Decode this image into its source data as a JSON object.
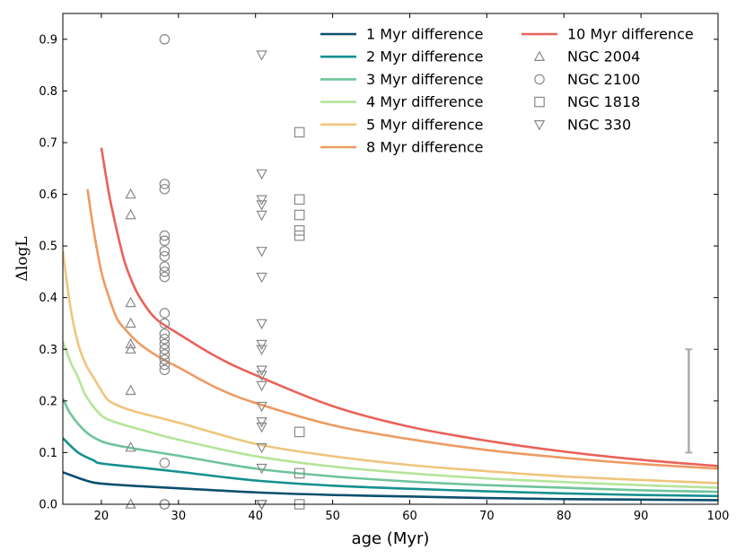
{
  "chart_data": {
    "type": "line+scatter",
    "xlabel": "age (Myr)",
    "ylabel": "ΔlogL",
    "xlim": [
      15,
      100
    ],
    "ylim": [
      0.0,
      0.95
    ],
    "x_ticks": [
      20,
      30,
      40,
      50,
      60,
      70,
      80,
      90,
      100
    ],
    "x_tick_labels": [
      "20",
      "30",
      "40",
      "50",
      "60",
      "70",
      "80",
      "90",
      "100"
    ],
    "y_ticks": [
      0.0,
      0.1,
      0.2,
      0.3,
      0.4,
      0.5,
      0.6,
      0.7,
      0.8,
      0.9
    ],
    "y_tick_labels": [
      "0.0",
      "0.1",
      "0.2",
      "0.3",
      "0.4",
      "0.5",
      "0.6",
      "0.7",
      "0.8",
      "0.9"
    ],
    "legend_position": "top-right",
    "series": [
      {
        "name": "1 Myr difference",
        "kind": "line",
        "color": "#0d4f6e",
        "x": [
          15,
          18,
          20,
          25,
          30,
          40,
          50,
          60,
          70,
          80,
          90,
          100
        ],
        "y": [
          0.062,
          0.046,
          0.04,
          0.035,
          0.031,
          0.023,
          0.018,
          0.015,
          0.012,
          0.01,
          0.009,
          0.008
        ]
      },
      {
        "name": "2 Myr difference",
        "kind": "line",
        "color": "#15908f",
        "x": [
          15,
          17,
          19,
          20,
          25,
          30,
          40,
          50,
          60,
          70,
          80,
          90,
          100
        ],
        "y": [
          0.128,
          0.1,
          0.085,
          0.079,
          0.071,
          0.063,
          0.046,
          0.036,
          0.03,
          0.025,
          0.021,
          0.018,
          0.016
        ]
      },
      {
        "name": "3 Myr difference",
        "kind": "line",
        "color": "#6fc49b",
        "x": [
          15,
          16,
          18,
          20,
          22,
          25,
          30,
          40,
          50,
          60,
          70,
          80,
          90,
          100
        ],
        "y": [
          0.205,
          0.175,
          0.14,
          0.122,
          0.114,
          0.106,
          0.094,
          0.069,
          0.054,
          0.044,
          0.037,
          0.032,
          0.027,
          0.024
        ]
      },
      {
        "name": "4 Myr difference",
        "kind": "line",
        "color": "#b4e49a",
        "x": [
          15,
          16,
          17,
          18,
          20,
          22,
          25,
          30,
          40,
          50,
          60,
          70,
          80,
          90,
          100
        ],
        "y": [
          0.315,
          0.275,
          0.245,
          0.21,
          0.172,
          0.158,
          0.145,
          0.125,
          0.093,
          0.073,
          0.06,
          0.05,
          0.043,
          0.037,
          0.032
        ]
      },
      {
        "name": "5 Myr difference",
        "kind": "line",
        "color": "#efc57d",
        "x": [
          15,
          16,
          17,
          18,
          19,
          20,
          21,
          23,
          25,
          30,
          40,
          50,
          60,
          70,
          80,
          90,
          100
        ],
        "y": [
          0.49,
          0.38,
          0.31,
          0.27,
          0.245,
          0.22,
          0.2,
          0.186,
          0.177,
          0.158,
          0.117,
          0.093,
          0.076,
          0.064,
          0.054,
          0.047,
          0.041
        ]
      },
      {
        "name": "8 Myr difference",
        "kind": "line",
        "color": "#ee9a62",
        "x": [
          18.2,
          19,
          20,
          21,
          22,
          23,
          25,
          28,
          30,
          35,
          40,
          50,
          60,
          70,
          80,
          90,
          100
        ],
        "y": [
          0.61,
          0.53,
          0.45,
          0.4,
          0.36,
          0.34,
          0.31,
          0.28,
          0.265,
          0.225,
          0.196,
          0.153,
          0.126,
          0.105,
          0.09,
          0.078,
          0.069
        ]
      },
      {
        "name": "10 Myr difference",
        "kind": "line",
        "color": "#e9625a",
        "x": [
          20,
          21,
          22,
          23,
          24,
          25,
          27,
          30,
          35,
          40,
          50,
          60,
          70,
          80,
          90,
          100
        ],
        "y": [
          0.69,
          0.6,
          0.53,
          0.47,
          0.43,
          0.4,
          0.36,
          0.33,
          0.285,
          0.25,
          0.19,
          0.15,
          0.123,
          0.102,
          0.086,
          0.074
        ]
      },
      {
        "name": "NGC 2004",
        "kind": "scatter",
        "marker": "triangle-up",
        "color": "#888888",
        "x": [
          23.8,
          23.8,
          23.8,
          23.8,
          23.8,
          23.8,
          23.8,
          23.8,
          23.8
        ],
        "y": [
          0.6,
          0.56,
          0.39,
          0.35,
          0.31,
          0.3,
          0.22,
          0.11,
          0.0
        ]
      },
      {
        "name": "NGC 2100",
        "kind": "scatter",
        "marker": "circle",
        "color": "#888888",
        "x": [
          28.2,
          28.2,
          28.2,
          28.2,
          28.2,
          28.2,
          28.2,
          28.2,
          28.2,
          28.2,
          28.2,
          28.2,
          28.2,
          28.2,
          28.2,
          28.2,
          28.2,
          28.2,
          28.2,
          28.2,
          28.2,
          28.2,
          28.2
        ],
        "y": [
          0.9,
          0.62,
          0.61,
          0.52,
          0.51,
          0.49,
          0.48,
          0.46,
          0.45,
          0.44,
          0.37,
          0.35,
          0.33,
          0.32,
          0.31,
          0.3,
          0.29,
          0.28,
          0.27,
          0.26,
          0.08,
          0.0,
          0.0
        ]
      },
      {
        "name": "NGC 1818",
        "kind": "scatter",
        "marker": "square",
        "color": "#888888",
        "x": [
          45.7,
          45.7,
          45.7,
          45.7,
          45.7,
          45.7,
          45.7,
          45.7
        ],
        "y": [
          0.72,
          0.59,
          0.56,
          0.53,
          0.52,
          0.14,
          0.06,
          0.0
        ]
      },
      {
        "name": "NGC 330",
        "kind": "scatter",
        "marker": "triangle-down",
        "color": "#888888",
        "x": [
          40.8,
          40.8,
          40.8,
          40.8,
          40.8,
          40.8,
          40.8,
          40.8,
          40.8,
          40.8,
          40.8,
          40.8,
          40.8,
          40.8,
          40.8,
          40.8,
          40.8,
          40.8,
          40.8,
          40.8,
          40.8
        ],
        "y": [
          0.87,
          0.64,
          0.59,
          0.58,
          0.56,
          0.49,
          0.44,
          0.35,
          0.31,
          0.3,
          0.26,
          0.25,
          0.23,
          0.19,
          0.16,
          0.15,
          0.11,
          0.07,
          0.0,
          0.0,
          0.0
        ]
      }
    ],
    "error_bar": {
      "x": 96.2,
      "y_low": 0.1,
      "y_high": 0.3,
      "color": "#aaaaaa"
    }
  }
}
